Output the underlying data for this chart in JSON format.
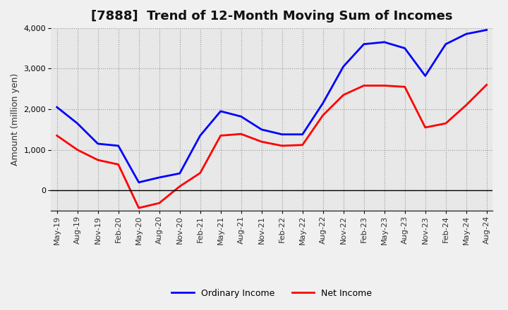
{
  "title": "[7888]  Trend of 12-Month Moving Sum of Incomes",
  "ylabel": "Amount (million yen)",
  "x_labels": [
    "May-19",
    "Aug-19",
    "Nov-19",
    "Feb-20",
    "May-20",
    "Aug-20",
    "Nov-20",
    "Feb-21",
    "May-21",
    "Aug-21",
    "Nov-21",
    "Feb-22",
    "May-22",
    "Aug-22",
    "Nov-22",
    "Feb-23",
    "May-23",
    "Aug-23",
    "Nov-23",
    "Feb-24",
    "May-24",
    "Aug-24"
  ],
  "ordinary_income": [
    2050,
    1650,
    1150,
    1100,
    200,
    320,
    420,
    1350,
    1950,
    1820,
    1500,
    1380,
    1380,
    2150,
    3050,
    3600,
    3650,
    3500,
    2820,
    3600,
    3850,
    3950
  ],
  "net_income": [
    1350,
    1000,
    750,
    640,
    -430,
    -310,
    100,
    430,
    1350,
    1390,
    1200,
    1100,
    1120,
    1850,
    2350,
    2580,
    2580,
    2550,
    1550,
    1650,
    2100,
    2600
  ],
  "ordinary_color": "#0000ff",
  "net_color": "#ff0000",
  "ylim_min": -500,
  "ylim_max": 4000,
  "yticks": [
    0,
    1000,
    2000,
    3000,
    4000
  ],
  "bg_color": "#f0f0f0",
  "plot_bg_color": "#e8e8e8",
  "grid_color": "#999999",
  "title_fontsize": 13,
  "axis_label_fontsize": 9,
  "tick_fontsize": 8,
  "legend_labels": [
    "Ordinary Income",
    "Net Income"
  ]
}
